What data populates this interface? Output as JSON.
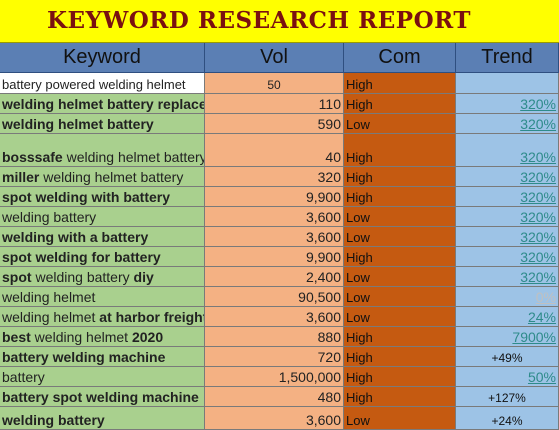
{
  "title": "KEYWORD RESEARCH REPORT",
  "columns": [
    "Keyword",
    "Vol",
    "Com",
    "Trend"
  ],
  "rows": [
    {
      "kw": [
        {
          "t": "battery powered welding helmet",
          "b": false
        }
      ],
      "vol": "50",
      "com": "High",
      "trend": ""
    },
    {
      "kw": [
        {
          "t": "welding helmet battery replacement",
          "b": true
        }
      ],
      "vol": "110",
      "com": "High",
      "trend": "320%"
    },
    {
      "kw": [
        {
          "t": "welding helmet battery",
          "b": true
        }
      ],
      "vol": "590",
      "com": "Low",
      "trend": "320%"
    },
    {
      "kw": [
        {
          "t": "bosssafe",
          "b": true
        },
        {
          "t": " welding helmet battery",
          "b": false
        }
      ],
      "vol": "40",
      "com": "High",
      "trend": "320%"
    },
    {
      "kw": [
        {
          "t": "miller",
          "b": true
        },
        {
          "t": " welding helmet battery",
          "b": false
        }
      ],
      "vol": "320",
      "com": "High",
      "trend": "320%"
    },
    {
      "kw": [
        {
          "t": "spot welding with battery",
          "b": true
        }
      ],
      "vol": "9,900",
      "com": "High",
      "trend": "320%"
    },
    {
      "kw": [
        {
          "t": "welding battery",
          "b": false
        }
      ],
      "vol": "3,600",
      "com": "Low",
      "trend": "320%"
    },
    {
      "kw": [
        {
          "t": "welding with a battery",
          "b": true
        }
      ],
      "vol": "3,600",
      "com": "Low",
      "trend": "320%"
    },
    {
      "kw": [
        {
          "t": "spot welding for battery",
          "b": true
        }
      ],
      "vol": "9,900",
      "com": "High",
      "trend": "320%"
    },
    {
      "kw": [
        {
          "t": "spot",
          "b": true
        },
        {
          "t": " welding battery ",
          "b": false
        },
        {
          "t": "diy",
          "b": true
        }
      ],
      "vol": "2,400",
      "com": "Low",
      "trend": "320%"
    },
    {
      "kw": [
        {
          "t": "welding helmet",
          "b": false
        }
      ],
      "vol": "90,500",
      "com": "Low",
      "trend": "0%"
    },
    {
      "kw": [
        {
          "t": "welding helmet ",
          "b": false
        },
        {
          "t": "at harbor freight",
          "b": true
        }
      ],
      "vol": "3,600",
      "com": "Low",
      "trend": "24%"
    },
    {
      "kw": [
        {
          "t": "best",
          "b": true
        },
        {
          "t": " welding helmet ",
          "b": false
        },
        {
          "t": "2020",
          "b": true
        }
      ],
      "vol": "880",
      "com": "High",
      "trend": "7900%"
    },
    {
      "kw": [
        {
          "t": "battery welding machine",
          "b": true
        }
      ],
      "vol": "720",
      "com": "High",
      "trend": "+49%"
    },
    {
      "kw": [
        {
          "t": "battery",
          "b": false
        }
      ],
      "vol": "1,500,000",
      "com": "High",
      "trend": "50%"
    },
    {
      "kw": [
        {
          "t": "battery spot welding machine",
          "b": true
        }
      ],
      "vol": "480",
      "com": "High",
      "trend": "+127%"
    },
    {
      "kw": [
        {
          "t": "welding battery",
          "b": true
        }
      ],
      "vol": "3,600",
      "com": "Low",
      "trend": "+24%"
    }
  ]
}
